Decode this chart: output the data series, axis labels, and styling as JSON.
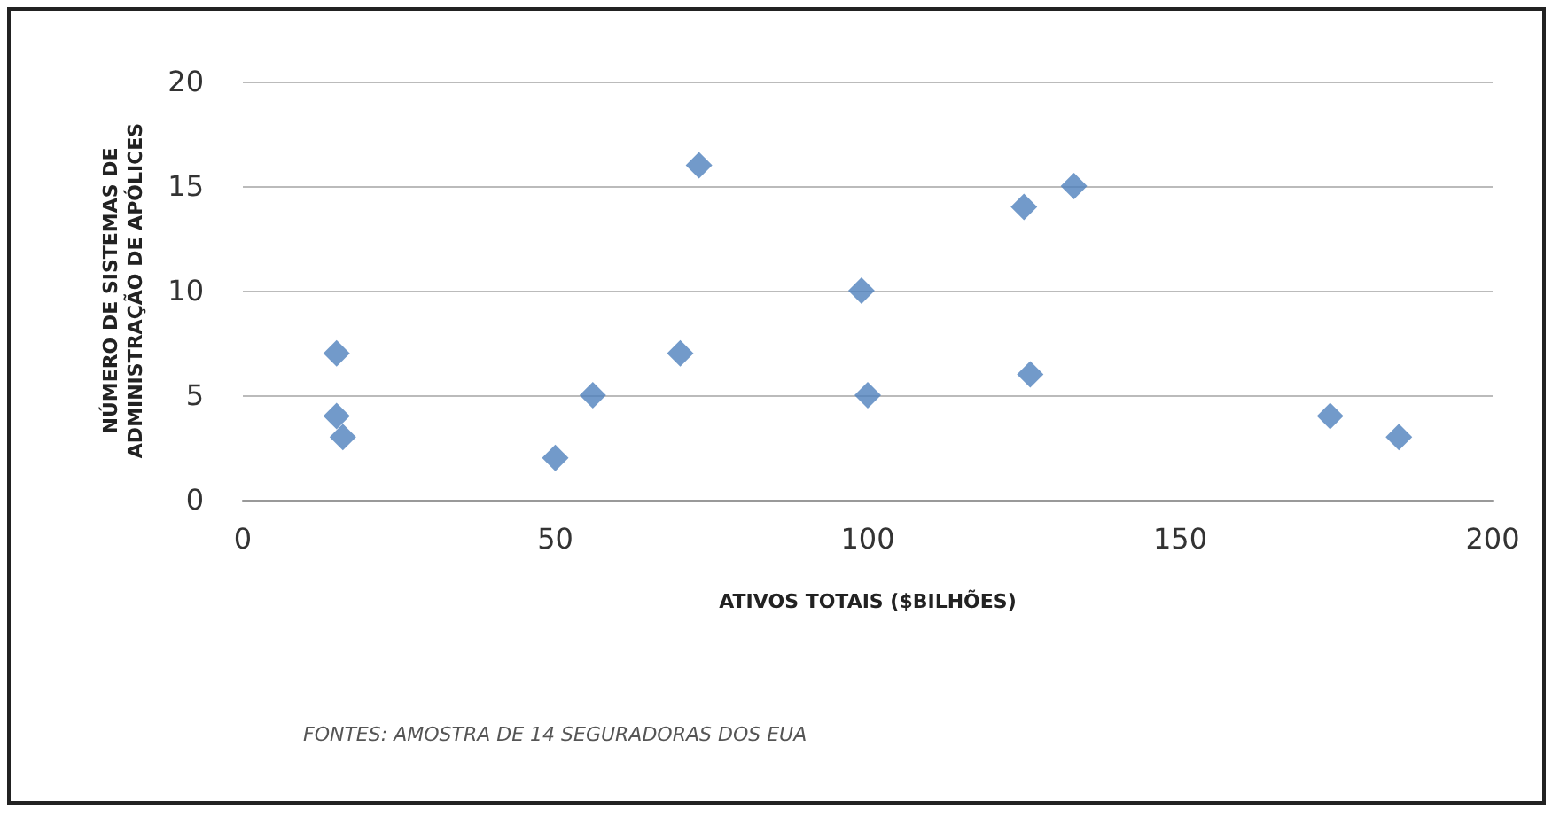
{
  "chart_data": {
    "type": "scatter",
    "xlabel": "ATIVOS TOTAIS ($BILHÕES)",
    "ylabel": "NÚMERO DE SISTEMAS DE\nADMINISTRAÇÃO DE APÓLICES",
    "annotations": [
      "FONTES: AMOSTRA DE 14 SEGURADORAS DOS EUA"
    ],
    "series": [
      {
        "color": "#4f81bd",
        "x": [
          15,
          15,
          16,
          50,
          56,
          70,
          73,
          99,
          100,
          125,
          126,
          133,
          174,
          185
        ],
        "values": [
          7,
          4,
          3,
          2,
          5,
          7,
          16,
          10,
          5,
          14,
          6,
          15,
          4,
          3
        ]
      }
    ],
    "xlim": [
      0,
      200
    ],
    "xticks": [
      0,
      50,
      100,
      150,
      200
    ],
    "ylim": [
      0,
      20
    ],
    "yticks": [
      0,
      5,
      10,
      15,
      20
    ],
    "grid": "y",
    "marker": "diamond"
  }
}
